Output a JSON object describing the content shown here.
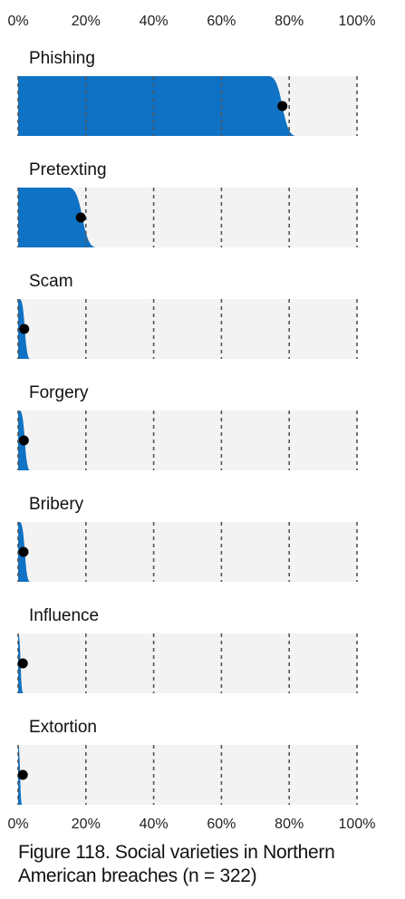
{
  "chart_data": {
    "type": "area",
    "title": "",
    "caption": "Figure 118. Social varieties in Northern American breaches (n = 322)",
    "x_ticks": [
      "0%",
      "20%",
      "40%",
      "60%",
      "80%",
      "100%"
    ],
    "xlim": [
      0,
      1
    ],
    "grid": true,
    "fill_color": "#0f72c4",
    "panel_color": "#f3f3f3",
    "point_color": "#000000",
    "categories": [
      "Phishing",
      "Pretexting",
      "Scam",
      "Forgery",
      "Bribery",
      "Influence",
      "Extortion"
    ],
    "estimates": [
      0.78,
      0.185,
      0.018,
      0.017,
      0.016,
      0.006,
      0.006
    ],
    "intervals": [
      [
        0.74,
        0.82
      ],
      [
        0.15,
        0.23
      ],
      [
        0.005,
        0.035
      ],
      [
        0.005,
        0.035
      ],
      [
        0.005,
        0.035
      ],
      [
        0.0,
        0.015
      ],
      [
        0.0,
        0.012
      ]
    ]
  }
}
